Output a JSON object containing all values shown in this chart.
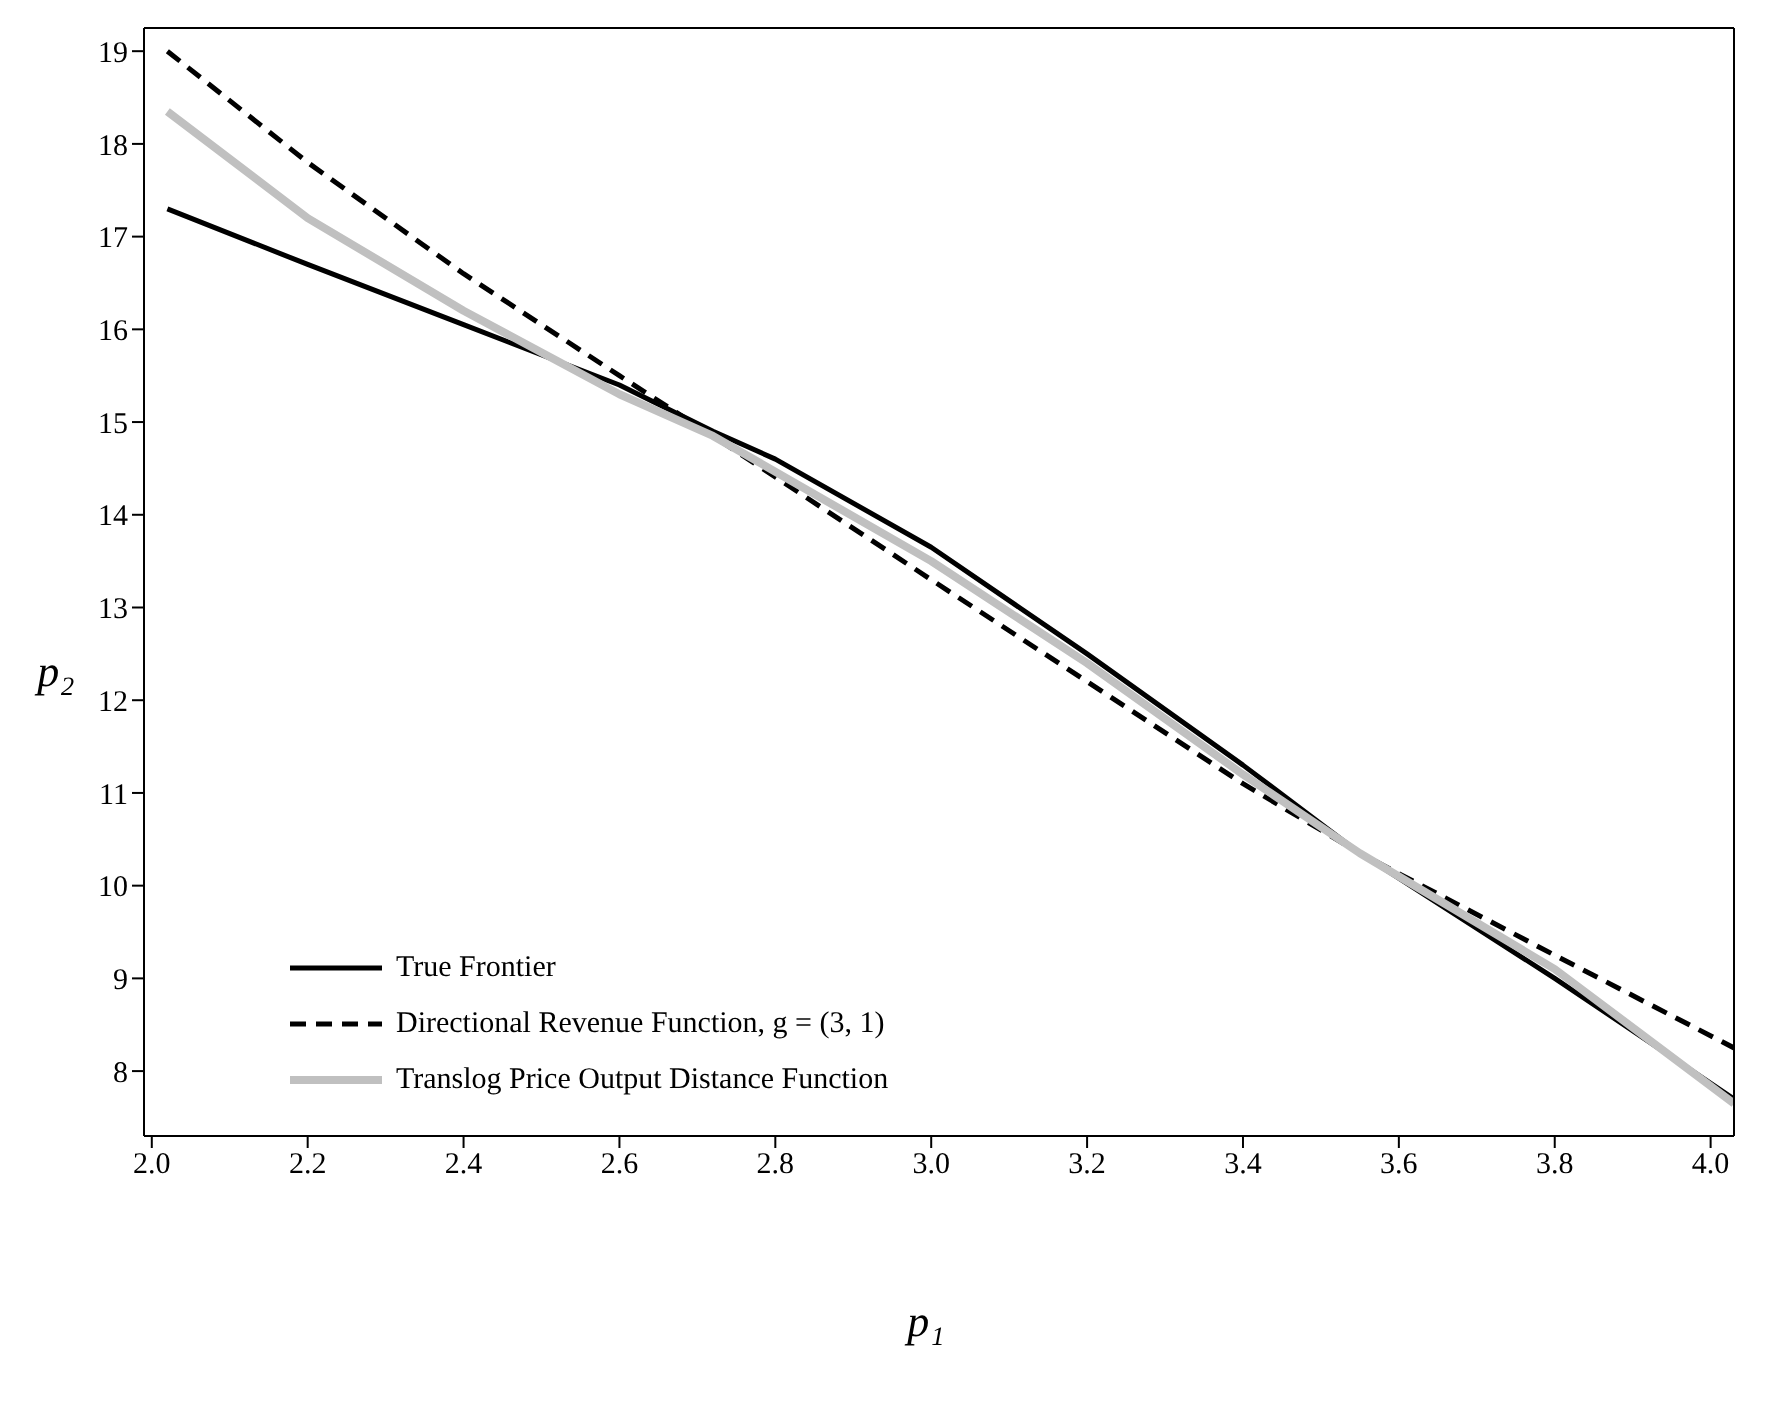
{
  "chart_data": {
    "type": "line",
    "xlabel": "p₁",
    "ylabel": "p₂",
    "xlim": [
      1.99,
      4.03
    ],
    "ylim": [
      7.3,
      19.25
    ],
    "xticks": [
      {
        "value": 2.0,
        "label": "2.0"
      },
      2.2,
      2.4,
      2.6,
      2.8,
      {
        "value": 3.0,
        "label": "3.0"
      },
      3.2,
      3.4,
      3.6,
      3.8,
      {
        "value": 4.0,
        "label": "4.0"
      }
    ],
    "yticks": [
      8,
      9,
      10,
      11,
      12,
      13,
      14,
      15,
      16,
      17,
      18,
      19
    ],
    "grid": false,
    "legend": "bottom left",
    "marker": "none",
    "series": [
      {
        "name": "True Frontier",
        "color": "#000000",
        "line_style": "solid",
        "x": [
          2.02,
          2.2,
          2.4,
          2.6,
          2.72,
          2.8,
          3.0,
          3.2,
          3.4,
          3.55,
          3.8,
          4.03
        ],
        "values": [
          17.3,
          16.7,
          16.05,
          15.4,
          14.9,
          14.6,
          13.65,
          12.5,
          11.3,
          10.35,
          9.0,
          7.7
        ]
      },
      {
        "name": "Directional Revenue Function, g = (3, 1)",
        "color": "#000000",
        "line_style": "dashed",
        "x": [
          2.02,
          2.2,
          2.4,
          2.6,
          2.72,
          3.0,
          3.2,
          3.4,
          3.55,
          3.8,
          4.03
        ],
        "values": [
          19.0,
          17.8,
          16.6,
          15.5,
          14.85,
          13.3,
          12.2,
          11.1,
          10.35,
          9.25,
          8.25
        ]
      },
      {
        "name": "Translog Price Output Distance Function",
        "color": "#c0c0c0",
        "line_style": "solid",
        "x": [
          2.02,
          2.2,
          2.4,
          2.6,
          2.72,
          3.0,
          3.2,
          3.4,
          3.55,
          3.8,
          4.03
        ],
        "values": [
          18.35,
          17.2,
          16.2,
          15.3,
          14.85,
          13.5,
          12.4,
          11.2,
          10.35,
          9.1,
          7.65
        ]
      }
    ]
  }
}
